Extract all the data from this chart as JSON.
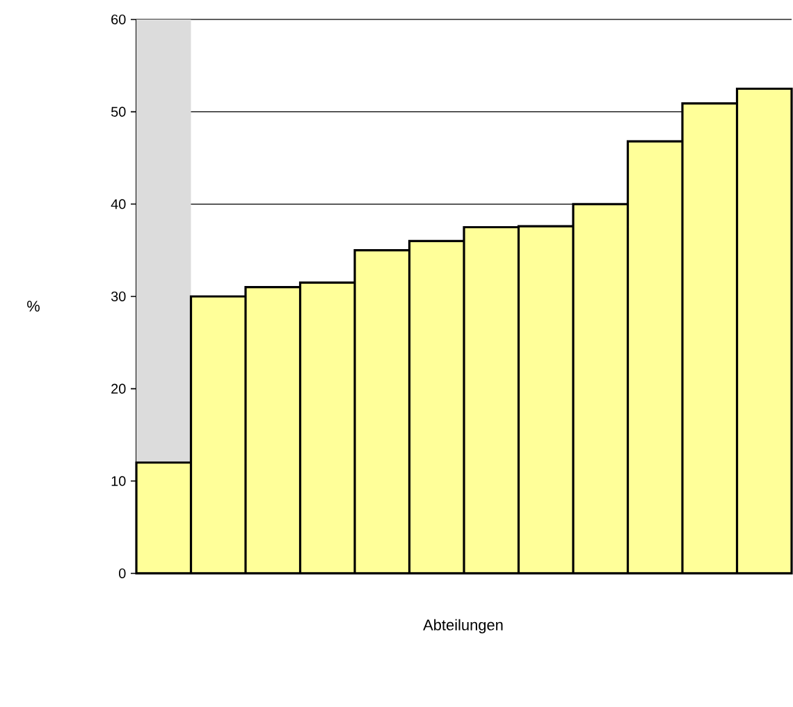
{
  "chart_data": {
    "type": "bar",
    "stacked": true,
    "xlabel": "Abteilungen",
    "ylabel": "%",
    "categories": [
      null,
      null,
      null,
      null,
      null,
      null,
      null,
      null,
      null,
      null,
      null,
      null
    ],
    "series": [
      {
        "color": "#ffff99",
        "values": [
          12,
          30,
          31,
          31.5,
          35,
          36,
          37.5,
          37.6,
          40,
          46.8,
          50.9,
          52.5
        ]
      },
      {
        "color": "#dcdcdc",
        "values": [
          48,
          null,
          null,
          null,
          null,
          null,
          null,
          null,
          null,
          null,
          null,
          null
        ]
      }
    ],
    "ylim": [
      0,
      60
    ],
    "yticks": [
      0,
      10,
      20,
      30,
      40,
      50,
      60
    ],
    "grid": "y"
  }
}
